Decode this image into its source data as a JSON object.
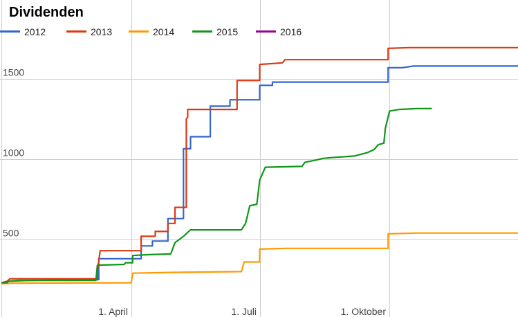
{
  "chart_data": {
    "type": "line",
    "title": "Dividenden",
    "xlabel": "",
    "ylabel": "",
    "x_range": [
      "2015-12-31",
      "2016-12-31"
    ],
    "ylim": [
      200,
      1800
    ],
    "x_ticks": [
      {
        "label": "1. April",
        "date": "2016-04-01"
      },
      {
        "label": "1. Juli",
        "date": "2016-07-01"
      },
      {
        "label": "1. Oktober",
        "date": "2016-10-01"
      }
    ],
    "y_ticks": [
      500,
      1000,
      1500
    ],
    "grid": true,
    "legend_position": "top",
    "series": [
      {
        "name": "2012",
        "color": "#3366cc",
        "points": [
          [
            "2015-12-31",
            230
          ],
          [
            "2016-01-04",
            230
          ],
          [
            "2016-01-05",
            240
          ],
          [
            "2016-01-20",
            245
          ],
          [
            "2016-02-10",
            248
          ],
          [
            "2016-03-09",
            250
          ],
          [
            "2016-03-09",
            380
          ],
          [
            "2016-04-08",
            380
          ],
          [
            "2016-04-08",
            460
          ],
          [
            "2016-04-16",
            460
          ],
          [
            "2016-04-16",
            490
          ],
          [
            "2016-04-27",
            490
          ],
          [
            "2016-04-27",
            630
          ],
          [
            "2016-05-08",
            630
          ],
          [
            "2016-05-08",
            1065
          ],
          [
            "2016-05-13",
            1065
          ],
          [
            "2016-05-13",
            1140
          ],
          [
            "2016-05-27",
            1140
          ],
          [
            "2016-05-27",
            1330
          ],
          [
            "2016-06-10",
            1330
          ],
          [
            "2016-06-10",
            1370
          ],
          [
            "2016-07-01",
            1370
          ],
          [
            "2016-07-01",
            1460
          ],
          [
            "2016-07-10",
            1460
          ],
          [
            "2016-07-10",
            1480
          ],
          [
            "2016-09-30",
            1480
          ],
          [
            "2016-09-30",
            1570
          ],
          [
            "2016-10-10",
            1570
          ],
          [
            "2016-10-18",
            1580
          ],
          [
            "2016-12-31",
            1580
          ]
        ]
      },
      {
        "name": "2013",
        "color": "#dc3912",
        "points": [
          [
            "2015-12-31",
            230
          ],
          [
            "2016-01-04",
            240
          ],
          [
            "2016-01-06",
            255
          ],
          [
            "2016-03-08",
            255
          ],
          [
            "2016-03-08",
            305
          ],
          [
            "2016-03-10",
            430
          ],
          [
            "2016-04-01",
            430
          ],
          [
            "2016-04-08",
            430
          ],
          [
            "2016-04-08",
            520
          ],
          [
            "2016-04-18",
            520
          ],
          [
            "2016-04-18",
            550
          ],
          [
            "2016-04-27",
            550
          ],
          [
            "2016-04-27",
            600
          ],
          [
            "2016-05-02",
            600
          ],
          [
            "2016-05-02",
            700
          ],
          [
            "2016-05-10",
            700
          ],
          [
            "2016-05-10",
            1250
          ],
          [
            "2016-05-11",
            1260
          ],
          [
            "2016-05-11",
            1310
          ],
          [
            "2016-06-15",
            1310
          ],
          [
            "2016-06-15",
            1490
          ],
          [
            "2016-07-01",
            1490
          ],
          [
            "2016-07-01",
            1590
          ],
          [
            "2016-07-17",
            1600
          ],
          [
            "2016-07-19",
            1620
          ],
          [
            "2016-09-30",
            1620
          ],
          [
            "2016-09-30",
            1690
          ],
          [
            "2016-10-15",
            1695
          ],
          [
            "2016-12-31",
            1695
          ]
        ]
      },
      {
        "name": "2014",
        "color": "#ff9900",
        "points": [
          [
            "2015-12-31",
            225
          ],
          [
            "2016-01-08",
            228
          ],
          [
            "2016-03-31",
            230
          ],
          [
            "2016-04-01",
            230
          ],
          [
            "2016-04-02",
            290
          ],
          [
            "2016-04-28",
            295
          ],
          [
            "2016-06-18",
            300
          ],
          [
            "2016-06-20",
            360
          ],
          [
            "2016-07-01",
            360
          ],
          [
            "2016-07-01",
            440
          ],
          [
            "2016-07-20",
            445
          ],
          [
            "2016-09-30",
            445
          ],
          [
            "2016-09-30",
            535
          ],
          [
            "2016-10-20",
            540
          ],
          [
            "2016-12-31",
            540
          ]
        ]
      },
      {
        "name": "2015",
        "color": "#109618",
        "points": [
          [
            "2015-12-31",
            230
          ],
          [
            "2016-01-04",
            230
          ],
          [
            "2016-01-05",
            240
          ],
          [
            "2016-01-12",
            245
          ],
          [
            "2016-03-07",
            245
          ],
          [
            "2016-03-08",
            340
          ],
          [
            "2016-03-27",
            345
          ],
          [
            "2016-03-28",
            355
          ],
          [
            "2016-04-02",
            355
          ],
          [
            "2016-04-02",
            400
          ],
          [
            "2016-04-12",
            405
          ],
          [
            "2016-04-29",
            410
          ],
          [
            "2016-05-02",
            480
          ],
          [
            "2016-05-08",
            520
          ],
          [
            "2016-05-13",
            560
          ],
          [
            "2016-06-18",
            560
          ],
          [
            "2016-06-21",
            600
          ],
          [
            "2016-06-24",
            710
          ],
          [
            "2016-06-29",
            720
          ],
          [
            "2016-07-01",
            870
          ],
          [
            "2016-07-04",
            930
          ],
          [
            "2016-07-05",
            950
          ],
          [
            "2016-07-31",
            955
          ],
          [
            "2016-08-02",
            980
          ],
          [
            "2016-08-10",
            995
          ],
          [
            "2016-08-15",
            1005
          ],
          [
            "2016-08-21",
            1010
          ],
          [
            "2016-09-06",
            1020
          ],
          [
            "2016-09-15",
            1040
          ],
          [
            "2016-09-20",
            1060
          ],
          [
            "2016-09-23",
            1090
          ],
          [
            "2016-09-27",
            1100
          ],
          [
            "2016-09-28",
            1190
          ],
          [
            "2016-10-01",
            1300
          ],
          [
            "2016-10-08",
            1310
          ],
          [
            "2016-10-20",
            1315
          ],
          [
            "2016-10-31",
            1315
          ]
        ]
      },
      {
        "name": "2016",
        "color": "#990099",
        "points": []
      }
    ]
  }
}
